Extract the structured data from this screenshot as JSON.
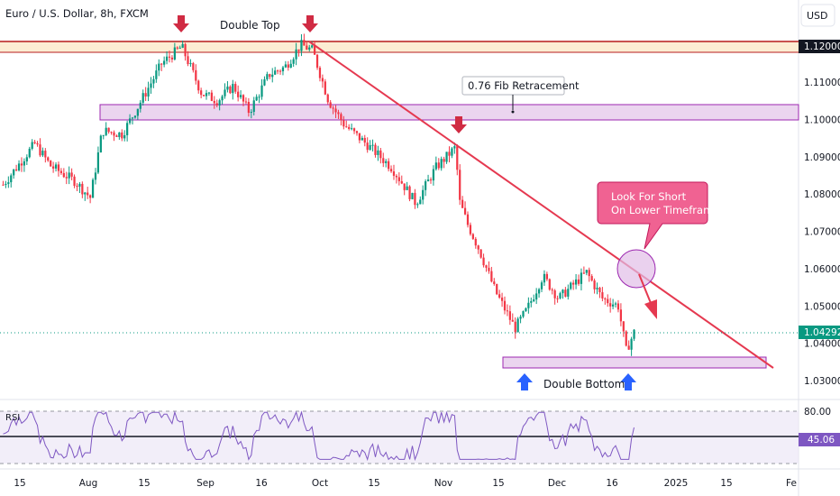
{
  "header": {
    "symbol": "Euro / U.S. Dollar, 8h, FXCM",
    "currency_button": "USD"
  },
  "colors": {
    "up": "#089981",
    "down": "#f23645",
    "resistance_line": "#b71c1c",
    "zone_fill": "#e1bee7",
    "zone_stroke": "#9c27b0",
    "trendline": "#e53950",
    "arrow_down": "#d02b43",
    "arrow_up": "#2962ff",
    "callout_fill": "#f06292",
    "current_price_bg": "#089981",
    "rsi_line": "#7e57c2",
    "rsi_band": "#ede7f6"
  },
  "annotations": {
    "double_top": "Double Top",
    "fib_label": "0.76 Fib Retracement",
    "double_bottom": "Double Bottom",
    "callout_line1": "Look For Short",
    "callout_line2": "On Lower Timeframe"
  },
  "price_axis": {
    "ticks": [
      "1.11000",
      "1.10000",
      "1.09000",
      "1.08000",
      "1.07000",
      "1.06000",
      "1.05000",
      "1.04000",
      "1.03000"
    ],
    "resistance_label": "1.12000",
    "current_price_label": "1.04292"
  },
  "time_axis": {
    "ticks": [
      "15",
      "Aug",
      "15",
      "Sep",
      "16",
      "Oct",
      "15",
      "Nov",
      "15",
      "Dec",
      "16",
      "2025",
      "15",
      "Fe"
    ]
  },
  "rsi": {
    "label": "RSI",
    "upper_label": "80.00",
    "value_label": "45.06"
  },
  "chart_data": {
    "type": "candlestick",
    "symbol": "EURUSD",
    "timeframe": "8h",
    "ylim": [
      1.026,
      1.1235
    ],
    "resistance_level": 1.12,
    "fib_zone": [
      1.0995,
      1.1045
    ],
    "support_zone": [
      1.0335,
      1.0355
    ],
    "current_price": 1.04292,
    "waypoints": [
      {
        "x": 0.0,
        "y": 1.0825
      },
      {
        "x": 0.04,
        "y": 1.0935
      },
      {
        "x": 0.06,
        "y": 1.0875
      },
      {
        "x": 0.09,
        "y": 1.0835
      },
      {
        "x": 0.11,
        "y": 1.079
      },
      {
        "x": 0.125,
        "y": 1.097
      },
      {
        "x": 0.15,
        "y": 1.096
      },
      {
        "x": 0.17,
        "y": 1.1035
      },
      {
        "x": 0.2,
        "y": 1.115
      },
      {
        "x": 0.225,
        "y": 1.1195
      },
      {
        "x": 0.25,
        "y": 1.107
      },
      {
        "x": 0.27,
        "y": 1.105
      },
      {
        "x": 0.29,
        "y": 1.109
      },
      {
        "x": 0.31,
        "y": 1.102
      },
      {
        "x": 0.335,
        "y": 1.112
      },
      {
        "x": 0.355,
        "y": 1.114
      },
      {
        "x": 0.375,
        "y": 1.12
      },
      {
        "x": 0.39,
        "y": 1.1185
      },
      {
        "x": 0.41,
        "y": 1.105
      },
      {
        "x": 0.43,
        "y": 1.0985
      },
      {
        "x": 0.46,
        "y": 1.093
      },
      {
        "x": 0.49,
        "y": 1.087
      },
      {
        "x": 0.52,
        "y": 1.0775
      },
      {
        "x": 0.545,
        "y": 1.087
      },
      {
        "x": 0.57,
        "y": 1.0925
      },
      {
        "x": 0.575,
        "y": 1.078
      },
      {
        "x": 0.585,
        "y": 1.072
      },
      {
        "x": 0.6,
        "y": 1.065
      },
      {
        "x": 0.62,
        "y": 1.054
      },
      {
        "x": 0.645,
        "y": 1.044
      },
      {
        "x": 0.66,
        "y": 1.049
      },
      {
        "x": 0.68,
        "y": 1.058
      },
      {
        "x": 0.7,
        "y": 1.052
      },
      {
        "x": 0.72,
        "y": 1.056
      },
      {
        "x": 0.735,
        "y": 1.059
      },
      {
        "x": 0.755,
        "y": 1.052
      },
      {
        "x": 0.775,
        "y": 1.05
      },
      {
        "x": 0.785,
        "y": 1.038
      },
      {
        "x": 0.795,
        "y": 1.0429
      }
    ],
    "rsi_values_note": "RSI oscillates roughly between 35 and 80; latest 45.06",
    "rsi_ylim": [
      20,
      90
    ]
  }
}
